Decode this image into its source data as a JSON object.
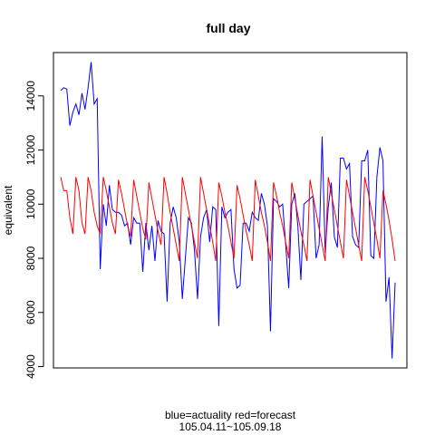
{
  "chart_data": {
    "type": "line",
    "title": "full day",
    "xlabel_line1": "blue=actuality red=forecast",
    "xlabel_line2": "105.04.11~105.09.18",
    "ylabel": "equivalent",
    "ylim": [
      3950,
      15600
    ],
    "xlim": [
      0,
      100
    ],
    "y_ticks": [
      4000,
      6000,
      8000,
      10000,
      12000,
      14000
    ],
    "y_tick_labels": [
      "4000",
      "6000",
      "8000",
      "10000",
      "12000",
      "14000"
    ],
    "grid": false,
    "legend": "none",
    "series": [
      {
        "name": "actuality",
        "color": "#0000ff",
        "values": [
          14200,
          14300,
          14250,
          12900,
          13400,
          13700,
          13300,
          14100,
          13500,
          14300,
          15250,
          13700,
          13900,
          7600,
          10000,
          9200,
          10700,
          9800,
          9700,
          9700,
          9600,
          9200,
          9300,
          8500,
          9500,
          9300,
          9300,
          7500,
          9300,
          8300,
          9200,
          7900,
          9400,
          9000,
          8900,
          6400,
          9300,
          9900,
          9500,
          8600,
          6500,
          8000,
          9500,
          9300,
          8300,
          6500,
          8800,
          9500,
          9800,
          8600,
          9900,
          9800,
          5500,
          9900,
          9500,
          9700,
          9800,
          7600,
          6900,
          7000,
          9300,
          9300,
          9000,
          9700,
          9500,
          9400,
          10400,
          10000,
          9200,
          5300,
          10200,
          10100,
          9900,
          10000,
          8500,
          6900,
          10000,
          10400,
          9200,
          7200,
          10000,
          10100,
          10200,
          10300,
          8000,
          8500,
          12500,
          8200,
          9900,
          10800,
          8800,
          8400,
          11700,
          11700,
          11300,
          11500,
          8800,
          8500,
          8400,
          11600,
          11600,
          12000,
          8100,
          8000,
          11000,
          12100,
          11600,
          6400,
          7300,
          4300,
          7100
        ]
      },
      {
        "name": "forecast",
        "color": "#ff0000",
        "values": [
          11000,
          10500,
          10500,
          9500,
          8900,
          11000,
          10500,
          9300,
          8900,
          11000,
          10500,
          9700,
          9200,
          8900,
          11000,
          10500,
          9900,
          9300,
          8900,
          10900,
          10400,
          9800,
          9200,
          8800,
          10900,
          10300,
          9700,
          9100,
          8700,
          10800,
          10200,
          9600,
          9000,
          8500,
          11000,
          10400,
          9700,
          9100,
          8500,
          7900,
          11000,
          10400,
          9800,
          9200,
          8600,
          8000,
          11000,
          10400,
          9800,
          9200,
          8600,
          7900,
          10800,
          10300,
          9700,
          9200,
          8600,
          8000,
          10700,
          10200,
          9600,
          9000,
          8500,
          7900,
          10900,
          10300,
          9700,
          9200,
          8600,
          7900,
          10800,
          10300,
          9700,
          9200,
          8600,
          8000,
          10800,
          10200,
          9600,
          9000,
          8500,
          7900,
          10900,
          10300,
          9700,
          9100,
          8500,
          7900,
          11000,
          10400,
          9800,
          9200,
          8600,
          8000,
          10900,
          10300,
          9700,
          9100,
          8500,
          7900,
          11000,
          10500,
          9900,
          9300,
          8700,
          8000,
          10500,
          10000,
          9400,
          8700,
          7900
        ]
      }
    ]
  }
}
